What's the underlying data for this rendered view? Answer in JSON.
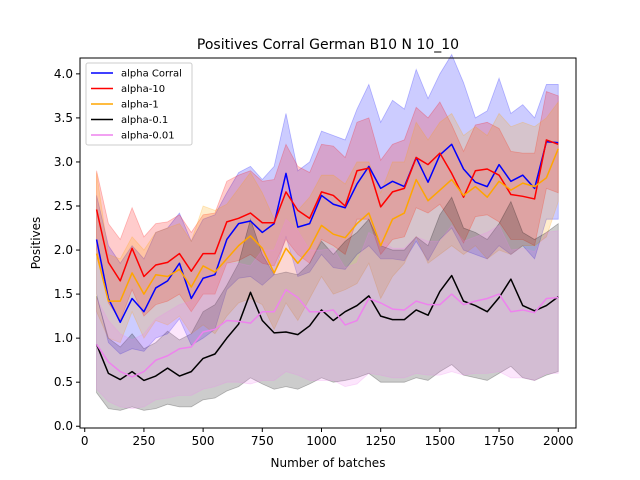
{
  "chart_data": {
    "type": "line",
    "title": "Positives Corral German B10 N 10_10",
    "xlabel": "Number of batches",
    "ylabel": "Positives",
    "xlim": [
      -20,
      2075
    ],
    "ylim": [
      -0.02,
      4.18
    ],
    "xticks": [
      0,
      250,
      500,
      750,
      1000,
      1250,
      1500,
      1750,
      2000
    ],
    "yticks": [
      0.0,
      0.5,
      1.0,
      1.5,
      2.0,
      2.5,
      3.0,
      3.5,
      4.0
    ],
    "xtick_labels": [
      "0",
      "250",
      "500",
      "750",
      "1000",
      "1250",
      "1500",
      "1750",
      "2000"
    ],
    "ytick_labels": [
      "0.0",
      "0.5",
      "1.0",
      "1.5",
      "2.0",
      "2.5",
      "3.0",
      "3.5",
      "4.0"
    ],
    "legend_position": "top-left",
    "grid": false,
    "x": [
      50,
      100,
      150,
      200,
      250,
      300,
      350,
      400,
      450,
      500,
      550,
      600,
      650,
      700,
      750,
      800,
      850,
      900,
      950,
      1000,
      1050,
      1100,
      1150,
      1200,
      1250,
      1300,
      1350,
      1400,
      1450,
      1500,
      1550,
      1600,
      1650,
      1700,
      1750,
      1800,
      1850,
      1900,
      1950,
      2000
    ],
    "series": [
      {
        "name": "alpha Corral",
        "color": "#0000ff",
        "values": [
          2.12,
          1.45,
          1.18,
          1.45,
          1.3,
          1.57,
          1.65,
          1.85,
          1.45,
          1.68,
          1.72,
          2.12,
          2.3,
          2.33,
          2.2,
          2.3,
          2.87,
          2.26,
          2.3,
          2.62,
          2.52,
          2.48,
          2.75,
          2.95,
          2.7,
          2.78,
          2.72,
          3.05,
          2.77,
          3.08,
          3.2,
          2.92,
          2.77,
          2.72,
          2.97,
          2.78,
          2.85,
          2.7,
          3.23,
          3.22
        ],
        "upper": [
          2.62,
          2.05,
          1.85,
          2.05,
          1.9,
          2.2,
          2.25,
          2.42,
          2.1,
          2.35,
          2.4,
          2.65,
          2.88,
          2.95,
          2.8,
          2.95,
          3.55,
          2.9,
          3.0,
          3.35,
          3.3,
          3.25,
          3.6,
          3.88,
          3.45,
          3.7,
          3.6,
          4.05,
          3.72,
          4.0,
          4.22,
          3.9,
          3.5,
          3.58,
          3.95,
          3.55,
          3.65,
          3.5,
          3.88,
          3.88
        ],
        "lower": [
          1.5,
          0.95,
          0.82,
          0.88,
          0.85,
          1.0,
          1.05,
          1.22,
          0.92,
          1.0,
          1.1,
          1.55,
          1.68,
          1.7,
          1.6,
          1.72,
          2.15,
          1.7,
          1.75,
          1.95,
          1.8,
          1.78,
          1.95,
          2.05,
          1.9,
          1.9,
          1.88,
          2.1,
          1.88,
          2.12,
          2.25,
          2.0,
          1.95,
          1.9,
          2.05,
          1.95,
          2.05,
          1.9,
          2.35,
          2.35
        ]
      },
      {
        "name": "alpha-10",
        "color": "#ff0000",
        "values": [
          2.46,
          1.86,
          1.65,
          2.02,
          1.7,
          1.83,
          1.86,
          1.96,
          1.76,
          1.96,
          1.96,
          2.32,
          2.36,
          2.42,
          2.31,
          2.31,
          2.66,
          2.45,
          2.36,
          2.66,
          2.62,
          2.5,
          2.9,
          2.93,
          2.49,
          2.66,
          2.7,
          3.05,
          2.97,
          3.1,
          2.87,
          2.6,
          2.9,
          2.92,
          2.85,
          2.63,
          2.61,
          2.58,
          3.25,
          3.2
        ],
        "upper": [
          2.9,
          2.3,
          2.12,
          2.48,
          2.15,
          2.3,
          2.32,
          2.4,
          2.2,
          2.4,
          2.42,
          2.78,
          2.85,
          2.9,
          2.78,
          2.8,
          3.2,
          2.95,
          2.88,
          3.2,
          3.18,
          3.05,
          3.45,
          3.5,
          3.02,
          3.2,
          3.25,
          3.62,
          3.5,
          3.68,
          3.42,
          3.12,
          3.42,
          3.45,
          3.38,
          3.12,
          3.1,
          3.1,
          3.8,
          3.75
        ],
        "lower": [
          2.0,
          1.4,
          1.2,
          1.55,
          1.25,
          1.38,
          1.42,
          1.5,
          1.3,
          1.5,
          1.5,
          1.85,
          1.88,
          1.95,
          1.85,
          1.82,
          2.12,
          1.95,
          1.85,
          2.12,
          2.05,
          1.95,
          2.35,
          2.35,
          1.95,
          2.12,
          2.15,
          2.48,
          2.42,
          2.52,
          2.32,
          2.08,
          2.38,
          2.4,
          2.32,
          2.12,
          2.12,
          2.05,
          2.7,
          2.65
        ]
      },
      {
        "name": "alpha-1",
        "color": "#ffa500",
        "values": [
          1.96,
          1.42,
          1.42,
          1.74,
          1.5,
          1.72,
          1.7,
          1.78,
          1.58,
          1.82,
          1.75,
          1.9,
          2.05,
          2.16,
          2.02,
          1.74,
          2.02,
          1.85,
          2.02,
          2.28,
          2.18,
          2.14,
          2.3,
          2.42,
          2.05,
          2.35,
          2.42,
          2.8,
          2.56,
          2.68,
          2.8,
          2.62,
          2.72,
          2.6,
          2.78,
          2.68,
          2.76,
          2.72,
          2.82,
          3.15
        ],
        "upper": [
          2.88,
          1.95,
          1.9,
          2.15,
          2.0,
          2.2,
          2.25,
          2.3,
          2.1,
          2.5,
          2.45,
          2.52,
          2.7,
          2.88,
          2.65,
          2.35,
          2.65,
          2.45,
          2.6,
          2.85,
          2.85,
          2.75,
          3.0,
          3.0,
          2.65,
          3.0,
          3.0,
          3.45,
          3.25,
          3.45,
          3.55,
          3.3,
          3.4,
          3.3,
          3.55,
          3.4,
          3.45,
          3.4,
          3.5,
          3.68
        ],
        "lower": [
          1.3,
          1.0,
          0.95,
          1.3,
          1.0,
          1.2,
          1.15,
          1.25,
          1.05,
          1.15,
          1.05,
          1.25,
          1.4,
          1.45,
          1.38,
          1.1,
          1.4,
          1.2,
          1.45,
          1.7,
          1.5,
          1.55,
          1.62,
          1.85,
          1.45,
          1.7,
          1.85,
          2.15,
          1.85,
          1.95,
          2.05,
          1.95,
          2.05,
          1.9,
          2.0,
          1.95,
          2.05,
          2.05,
          2.15,
          2.55
        ]
      },
      {
        "name": "alpha-0.1",
        "color": "#000000",
        "values": [
          0.93,
          0.6,
          0.53,
          0.62,
          0.52,
          0.57,
          0.66,
          0.57,
          0.62,
          0.77,
          0.82,
          1.0,
          1.16,
          1.52,
          1.2,
          1.06,
          1.07,
          1.04,
          1.14,
          1.32,
          1.2,
          1.3,
          1.37,
          1.48,
          1.25,
          1.21,
          1.21,
          1.32,
          1.26,
          1.53,
          1.71,
          1.42,
          1.37,
          1.3,
          1.46,
          1.67,
          1.37,
          1.31,
          1.37,
          1.47
        ],
        "upper": [
          1.48,
          1.0,
          0.9,
          1.05,
          0.88,
          0.95,
          1.08,
          0.98,
          1.05,
          1.3,
          1.38,
          1.6,
          1.85,
          2.35,
          1.95,
          1.72,
          1.75,
          1.72,
          1.85,
          2.1,
          1.95,
          2.1,
          2.2,
          2.35,
          2.05,
          2.0,
          2.0,
          2.15,
          2.05,
          2.4,
          2.6,
          2.25,
          2.2,
          2.12,
          2.3,
          2.55,
          2.2,
          2.12,
          2.2,
          2.3
        ],
        "lower": [
          0.38,
          0.2,
          0.18,
          0.22,
          0.18,
          0.2,
          0.25,
          0.22,
          0.22,
          0.3,
          0.32,
          0.4,
          0.45,
          0.55,
          0.48,
          0.42,
          0.45,
          0.42,
          0.48,
          0.55,
          0.5,
          0.52,
          0.55,
          0.6,
          0.5,
          0.5,
          0.5,
          0.55,
          0.52,
          0.62,
          0.7,
          0.58,
          0.55,
          0.52,
          0.6,
          0.68,
          0.55,
          0.52,
          0.58,
          0.62
        ]
      },
      {
        "name": "alpha-0.01",
        "color": "#ee82ee",
        "values": [
          0.93,
          0.73,
          0.62,
          0.56,
          0.62,
          0.75,
          0.8,
          0.88,
          0.9,
          1.07,
          1.1,
          1.2,
          1.19,
          1.17,
          1.3,
          1.3,
          1.55,
          1.46,
          1.3,
          1.3,
          1.32,
          1.15,
          1.2,
          1.45,
          1.4,
          1.33,
          1.32,
          1.42,
          1.38,
          1.38,
          1.5,
          1.38,
          1.42,
          1.45,
          1.5,
          1.3,
          1.32,
          1.29,
          1.45,
          1.46
        ],
        "upper": [
          1.45,
          1.2,
          1.05,
          0.98,
          1.05,
          1.22,
          1.3,
          1.38,
          1.42,
          1.68,
          1.72,
          1.85,
          1.85,
          1.82,
          2.0,
          2.0,
          2.35,
          2.22,
          2.0,
          2.0,
          2.02,
          1.8,
          1.85,
          2.2,
          2.12,
          2.02,
          2.02,
          2.15,
          2.1,
          2.1,
          2.28,
          2.1,
          2.15,
          2.2,
          2.28,
          2.0,
          2.02,
          1.98,
          2.2,
          2.22
        ],
        "lower": [
          0.42,
          0.28,
          0.22,
          0.2,
          0.22,
          0.3,
          0.32,
          0.35,
          0.35,
          0.42,
          0.45,
          0.5,
          0.5,
          0.48,
          0.52,
          0.52,
          0.62,
          0.58,
          0.52,
          0.52,
          0.52,
          0.45,
          0.48,
          0.6,
          0.58,
          0.55,
          0.55,
          0.6,
          0.58,
          0.58,
          0.62,
          0.58,
          0.6,
          0.6,
          0.62,
          0.55,
          0.55,
          0.52,
          0.6,
          0.6
        ]
      }
    ]
  }
}
